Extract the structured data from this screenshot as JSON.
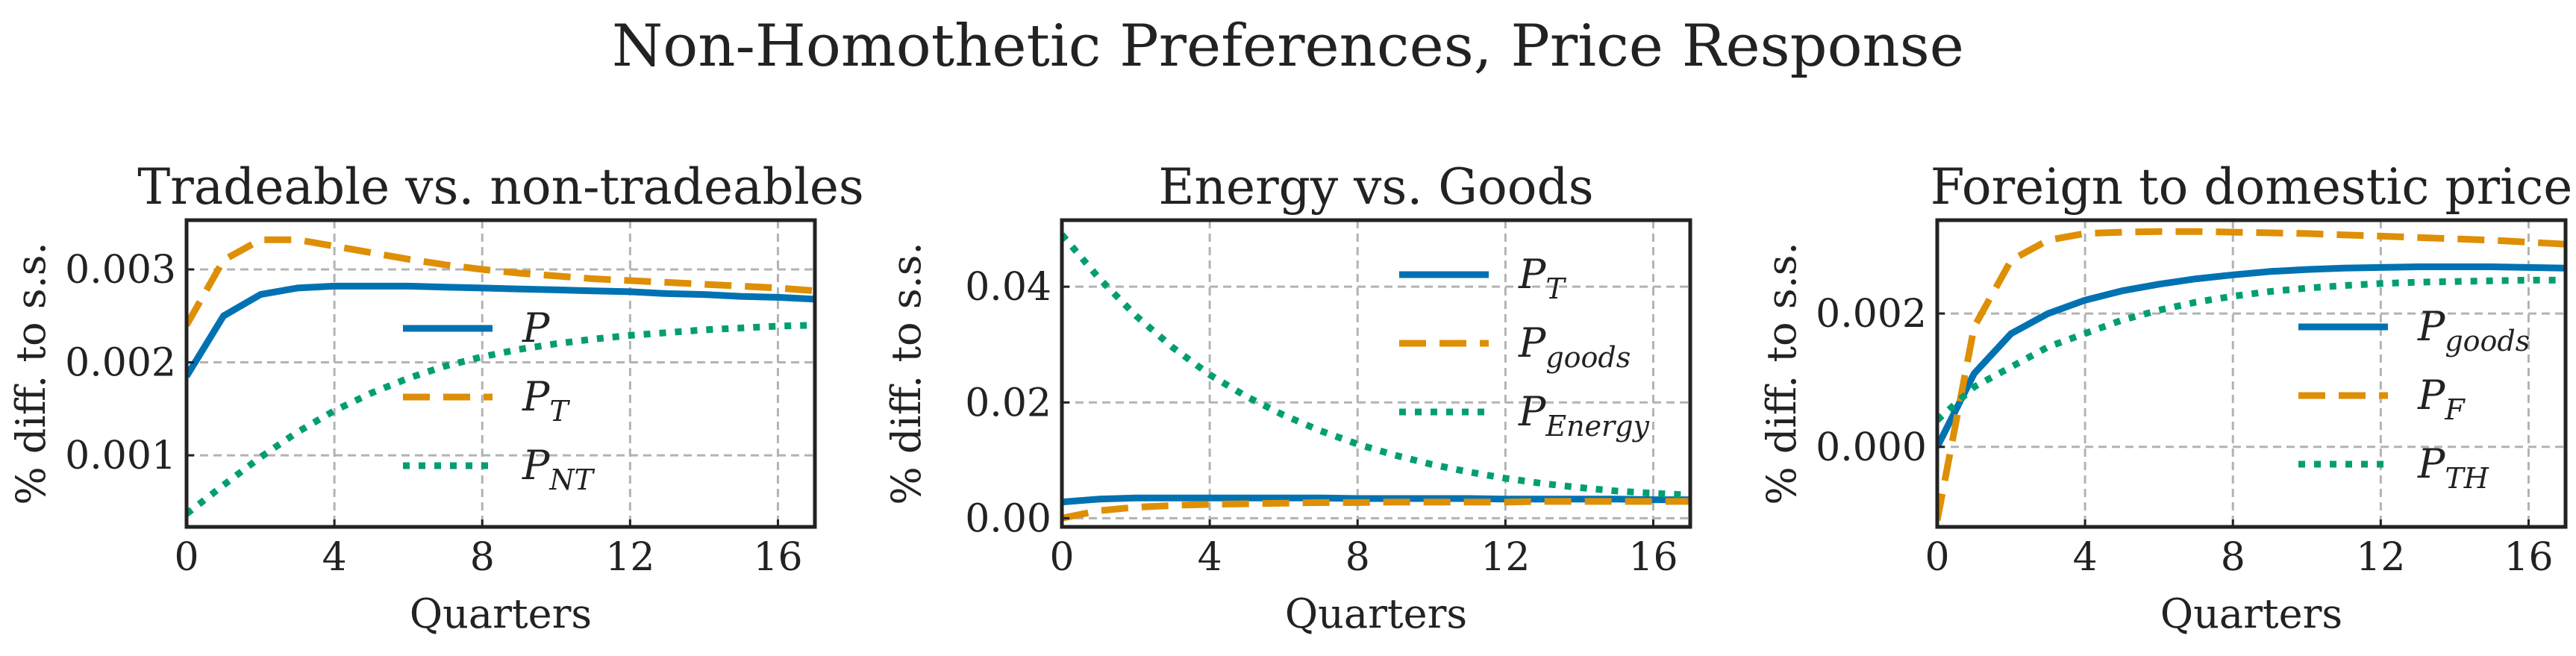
{
  "figure": {
    "suptitle": "Non-Homothetic Preferences, Price Response"
  },
  "chart_data": [
    {
      "type": "line",
      "title": "Tradeable vs. non-tradeables",
      "xlabel": "Quarters",
      "ylabel": "% diff. to s.s.",
      "xlim": [
        0,
        17
      ],
      "ylim": [
        0.00023,
        0.00353
      ],
      "xticks": [
        0,
        4,
        8,
        12,
        16
      ],
      "yticks": [
        0.001,
        0.002,
        0.003
      ],
      "ytick_labels": [
        "0.001",
        "0.002",
        "0.003"
      ],
      "grid": true,
      "legend_position": "center-right",
      "x": [
        0,
        1,
        2,
        3,
        4,
        5,
        6,
        7,
        8,
        9,
        10,
        11,
        12,
        13,
        14,
        15,
        16,
        17
      ],
      "series": [
        {
          "name": "P",
          "name_base": "P",
          "name_sub": "",
          "color": "#0072b2",
          "style": "solid",
          "values": [
            0.00185,
            0.0025,
            0.00273,
            0.0028,
            0.00282,
            0.00282,
            0.00282,
            0.00281,
            0.0028,
            0.00279,
            0.00278,
            0.00277,
            0.00276,
            0.00274,
            0.00273,
            0.00271,
            0.0027,
            0.00268
          ]
        },
        {
          "name": "P_T",
          "name_base": "P",
          "name_sub": "T",
          "color": "#de8f05",
          "style": "dashed",
          "values": [
            0.0024,
            0.0031,
            0.00332,
            0.00332,
            0.00325,
            0.00318,
            0.00311,
            0.00305,
            0.003,
            0.00296,
            0.00293,
            0.0029,
            0.00288,
            0.00286,
            0.00284,
            0.00282,
            0.0028,
            0.00277
          ]
        },
        {
          "name": "P_NT",
          "name_base": "P",
          "name_sub": "NT",
          "color": "#029e73",
          "style": "dotted",
          "values": [
            0.00037,
            0.00068,
            0.00098,
            0.00125,
            0.00148,
            0.00167,
            0.00183,
            0.00196,
            0.00206,
            0.00214,
            0.0022,
            0.00225,
            0.00229,
            0.00232,
            0.00235,
            0.00237,
            0.00239,
            0.0024
          ]
        }
      ]
    },
    {
      "type": "line",
      "title": "Energy vs. Goods",
      "xlabel": "Quarters",
      "ylabel": "% diff. to s.s.",
      "xlim": [
        0,
        17
      ],
      "ylim": [
        -0.0015,
        0.0515
      ],
      "xticks": [
        0,
        4,
        8,
        12,
        16
      ],
      "yticks": [
        0.0,
        0.02,
        0.04
      ],
      "ytick_labels": [
        "0.00",
        "0.02",
        "0.04"
      ],
      "grid": true,
      "legend_position": "upper-right",
      "x": [
        0,
        1,
        2,
        3,
        4,
        5,
        6,
        7,
        8,
        9,
        10,
        11,
        12,
        13,
        14,
        15,
        16,
        17
      ],
      "series": [
        {
          "name": "P_T",
          "name_base": "P",
          "name_sub": "T",
          "color": "#0072b2",
          "style": "solid",
          "values": [
            0.0028,
            0.0033,
            0.0035,
            0.0035,
            0.0035,
            0.0035,
            0.0035,
            0.0035,
            0.0034,
            0.0034,
            0.0034,
            0.0034,
            0.0033,
            0.0033,
            0.0033,
            0.0033,
            0.0032,
            0.0032
          ]
        },
        {
          "name": "P_goods",
          "name_base": "P",
          "name_sub": "goods",
          "color": "#de8f05",
          "style": "dashed",
          "values": [
            0.0,
            0.0013,
            0.0019,
            0.0022,
            0.0024,
            0.0025,
            0.0026,
            0.0027,
            0.0027,
            0.0028,
            0.0028,
            0.0028,
            0.0028,
            0.0029,
            0.0029,
            0.0029,
            0.0029,
            0.0029
          ]
        },
        {
          "name": "P_Energy",
          "name_base": "P",
          "name_sub": "Energy",
          "color": "#029e73",
          "style": "dotted",
          "values": [
            0.049,
            0.0415,
            0.035,
            0.0295,
            0.0248,
            0.021,
            0.0178,
            0.0151,
            0.0128,
            0.0109,
            0.0093,
            0.008,
            0.0069,
            0.006,
            0.0053,
            0.0047,
            0.0043,
            0.004
          ]
        }
      ]
    },
    {
      "type": "line",
      "title": "Foreign to domestic price",
      "xlabel": "Quarters",
      "ylabel": "% diff. to s.s.",
      "xlim": [
        0,
        17
      ],
      "ylim": [
        -0.0012,
        0.0034
      ],
      "xticks": [
        0,
        4,
        8,
        12,
        16
      ],
      "yticks": [
        0.0,
        0.002
      ],
      "ytick_labels": [
        "0.000",
        "0.002"
      ],
      "grid": true,
      "legend_position": "center-right",
      "x": [
        0,
        1,
        2,
        3,
        4,
        5,
        6,
        7,
        8,
        9,
        10,
        11,
        12,
        13,
        14,
        15,
        16,
        17
      ],
      "series": [
        {
          "name": "P_goods",
          "name_base": "P",
          "name_sub": "goods",
          "color": "#0072b2",
          "style": "solid",
          "values": [
            0.0,
            0.0011,
            0.0017,
            0.002,
            0.0022,
            0.00234,
            0.00244,
            0.00252,
            0.00258,
            0.00263,
            0.00266,
            0.00268,
            0.00269,
            0.0027,
            0.0027,
            0.0027,
            0.00269,
            0.00268
          ]
        },
        {
          "name": "P_F",
          "name_base": "P",
          "name_sub": "F",
          "color": "#de8f05",
          "style": "dashed",
          "values": [
            -0.0011,
            0.0018,
            0.0028,
            0.0031,
            0.0032,
            0.00322,
            0.00323,
            0.00323,
            0.00322,
            0.00321,
            0.0032,
            0.00318,
            0.00316,
            0.00314,
            0.00312,
            0.0031,
            0.00307,
            0.00304
          ]
        },
        {
          "name": "P_TH",
          "name_base": "P",
          "name_sub": "TH",
          "color": "#029e73",
          "style": "dotted",
          "values": [
            0.0004,
            0.0009,
            0.0012,
            0.0015,
            0.0017,
            0.0019,
            0.00205,
            0.00217,
            0.00226,
            0.00233,
            0.00238,
            0.00242,
            0.00245,
            0.00247,
            0.00248,
            0.00249,
            0.0025,
            0.0025
          ]
        }
      ]
    }
  ]
}
